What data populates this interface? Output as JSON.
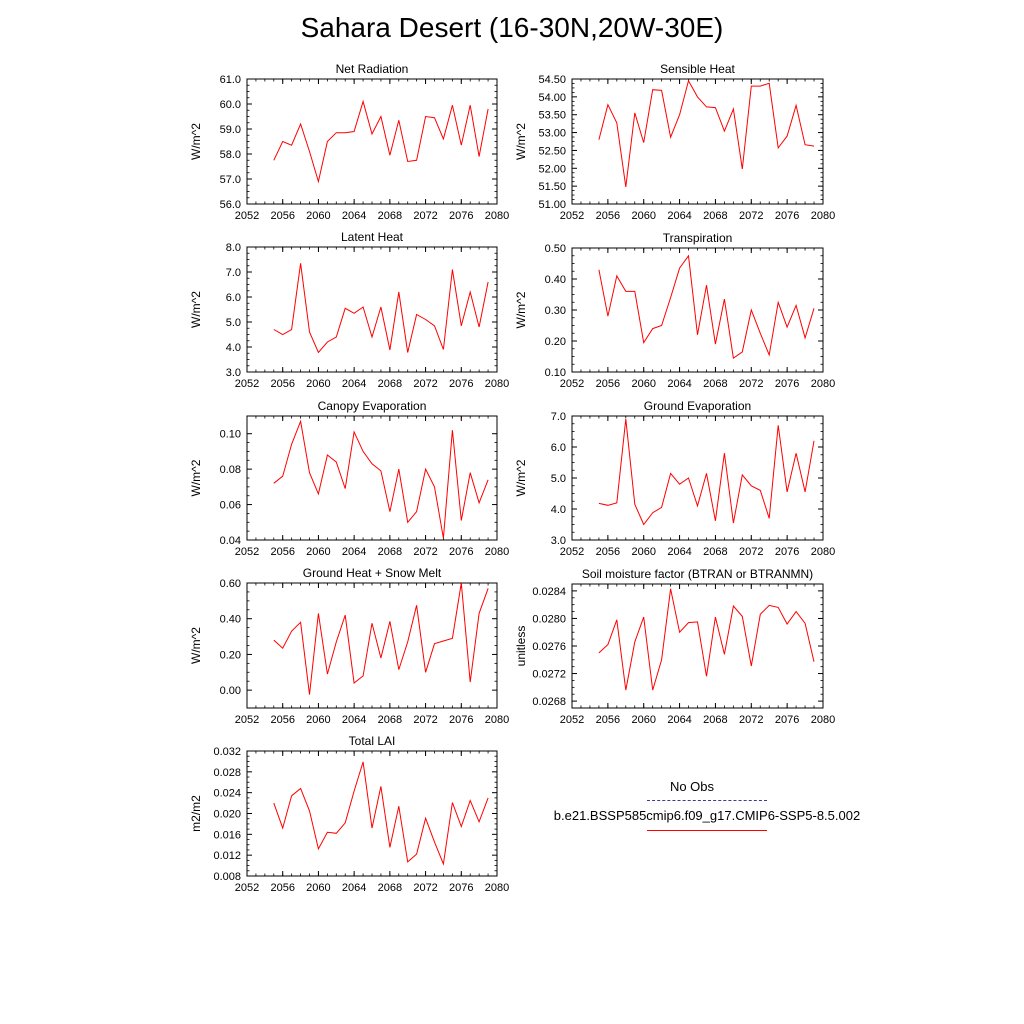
{
  "title": "Sahara Desert (16-30N,20W-30E)",
  "legend": {
    "obs_label": "No Obs",
    "model_label": "b.e21.BSSP585cmip6.f09_g17.CMIP6-SSP5-8.5.002",
    "obs_color": "#3a3a9a",
    "model_color": "#ff0000"
  },
  "chart_data": [
    {
      "type": "line",
      "title": "Net Radiation",
      "ylabel": "W/m^2",
      "xlim": [
        2052,
        2080
      ],
      "xticks": [
        "2052",
        "2056",
        "2060",
        "2064",
        "2068",
        "2072",
        "2076",
        "2080"
      ],
      "ylim": [
        56.0,
        61.0
      ],
      "yticks": [
        "56.0",
        "57.0",
        "58.0",
        "59.0",
        "60.0",
        "61.0"
      ],
      "grid": false,
      "series": [
        {
          "color": "#ff0000",
          "x": [
            2055,
            2056,
            2057,
            2058,
            2059,
            2060,
            2061,
            2062,
            2063,
            2064,
            2065,
            2066,
            2067,
            2068,
            2069,
            2070,
            2071,
            2072,
            2073,
            2074,
            2075,
            2076,
            2077,
            2078,
            2079
          ],
          "values": [
            57.75,
            58.5,
            58.35,
            59.2,
            58.1,
            56.9,
            58.5,
            58.85,
            58.85,
            58.9,
            60.1,
            58.8,
            59.5,
            57.95,
            59.35,
            57.7,
            57.75,
            59.5,
            59.45,
            58.6,
            59.95,
            58.35,
            59.95,
            57.9,
            59.8
          ]
        }
      ]
    },
    {
      "type": "line",
      "title": "Sensible Heat",
      "ylabel": "W/m^2",
      "xlim": [
        2052,
        2080
      ],
      "xticks": [
        "2052",
        "2056",
        "2060",
        "2064",
        "2068",
        "2072",
        "2076",
        "2080"
      ],
      "ylim": [
        51.0,
        54.5
      ],
      "yticks": [
        "51.00",
        "51.50",
        "52.00",
        "52.50",
        "53.00",
        "53.50",
        "54.00",
        "54.50"
      ],
      "grid": false,
      "series": [
        {
          "color": "#ff0000",
          "x": [
            2055,
            2056,
            2057,
            2058,
            2059,
            2060,
            2061,
            2062,
            2063,
            2064,
            2065,
            2066,
            2067,
            2068,
            2069,
            2070,
            2071,
            2072,
            2073,
            2074,
            2075,
            2076,
            2077,
            2078,
            2079
          ],
          "values": [
            52.8,
            53.78,
            53.27,
            51.48,
            53.55,
            52.72,
            54.2,
            54.18,
            52.87,
            53.5,
            54.45,
            54.0,
            53.72,
            53.7,
            53.04,
            53.66,
            51.98,
            54.3,
            54.3,
            54.38,
            52.57,
            52.9,
            53.76,
            52.66,
            52.62
          ]
        }
      ]
    },
    {
      "type": "line",
      "title": "Latent Heat",
      "ylabel": "W/m^2",
      "xlim": [
        2052,
        2080
      ],
      "xticks": [
        "2052",
        "2056",
        "2060",
        "2064",
        "2068",
        "2072",
        "2076",
        "2080"
      ],
      "ylim": [
        3.0,
        8.0
      ],
      "yticks": [
        "3.0",
        "4.0",
        "5.0",
        "6.0",
        "7.0",
        "8.0"
      ],
      "grid": false,
      "series": [
        {
          "color": "#ff0000",
          "x": [
            2055,
            2056,
            2057,
            2058,
            2059,
            2060,
            2061,
            2062,
            2063,
            2064,
            2065,
            2066,
            2067,
            2068,
            2069,
            2070,
            2071,
            2072,
            2073,
            2074,
            2075,
            2076,
            2077,
            2078,
            2079
          ],
          "values": [
            4.7,
            4.5,
            4.7,
            7.35,
            4.6,
            3.78,
            4.2,
            4.4,
            5.55,
            5.35,
            5.6,
            4.4,
            5.6,
            3.88,
            6.2,
            3.78,
            5.3,
            5.1,
            4.85,
            3.9,
            7.1,
            4.85,
            6.2,
            4.8,
            6.6
          ]
        }
      ]
    },
    {
      "type": "line",
      "title": "Transpiration",
      "ylabel": "W/m^2",
      "xlim": [
        2052,
        2080
      ],
      "xticks": [
        "2052",
        "2056",
        "2060",
        "2064",
        "2068",
        "2072",
        "2076",
        "2080"
      ],
      "ylim": [
        0.1,
        0.5
      ],
      "yticks": [
        "0.10",
        "0.20",
        "0.30",
        "0.40",
        "0.50"
      ],
      "grid": false,
      "series": [
        {
          "color": "#ff0000",
          "x": [
            2055,
            2056,
            2057,
            2058,
            2059,
            2060,
            2061,
            2062,
            2063,
            2064,
            2065,
            2066,
            2067,
            2068,
            2069,
            2070,
            2071,
            2072,
            2073,
            2074,
            2075,
            2076,
            2077,
            2078,
            2079
          ],
          "values": [
            0.43,
            0.28,
            0.41,
            0.36,
            0.36,
            0.195,
            0.24,
            0.25,
            0.34,
            0.435,
            0.475,
            0.22,
            0.38,
            0.19,
            0.335,
            0.145,
            0.165,
            0.3,
            0.225,
            0.155,
            0.325,
            0.245,
            0.315,
            0.21,
            0.305
          ]
        }
      ]
    },
    {
      "type": "line",
      "title": "Canopy Evaporation",
      "ylabel": "W/m^2",
      "xlim": [
        2052,
        2080
      ],
      "xticks": [
        "2052",
        "2056",
        "2060",
        "2064",
        "2068",
        "2072",
        "2076",
        "2080"
      ],
      "ylim": [
        0.04,
        0.11
      ],
      "yticks": [
        "0.04",
        "0.06",
        "0.08",
        "0.10"
      ],
      "grid": false,
      "series": [
        {
          "color": "#ff0000",
          "x": [
            2055,
            2056,
            2057,
            2058,
            2059,
            2060,
            2061,
            2062,
            2063,
            2064,
            2065,
            2066,
            2067,
            2068,
            2069,
            2070,
            2071,
            2072,
            2073,
            2074,
            2075,
            2076,
            2077,
            2078,
            2079
          ],
          "values": [
            0.072,
            0.076,
            0.094,
            0.107,
            0.078,
            0.066,
            0.088,
            0.084,
            0.069,
            0.101,
            0.09,
            0.083,
            0.079,
            0.056,
            0.08,
            0.05,
            0.056,
            0.08,
            0.07,
            0.041,
            0.102,
            0.051,
            0.078,
            0.061,
            0.074
          ]
        }
      ]
    },
    {
      "type": "line",
      "title": "Ground Evaporation",
      "ylabel": "W/m^2",
      "xlim": [
        2052,
        2080
      ],
      "xticks": [
        "2052",
        "2056",
        "2060",
        "2064",
        "2068",
        "2072",
        "2076",
        "2080"
      ],
      "ylim": [
        3.0,
        7.0
      ],
      "yticks": [
        "3.0",
        "4.0",
        "5.0",
        "6.0",
        "7.0"
      ],
      "grid": false,
      "series": [
        {
          "color": "#ff0000",
          "x": [
            2055,
            2056,
            2057,
            2058,
            2059,
            2060,
            2061,
            2062,
            2063,
            2064,
            2065,
            2066,
            2067,
            2068,
            2069,
            2070,
            2071,
            2072,
            2073,
            2074,
            2075,
            2076,
            2077,
            2078,
            2079
          ],
          "values": [
            4.18,
            4.12,
            4.2,
            6.9,
            4.15,
            3.5,
            3.88,
            4.05,
            5.15,
            4.8,
            5.0,
            4.1,
            5.15,
            3.62,
            5.8,
            3.55,
            5.1,
            4.75,
            4.6,
            3.7,
            6.7,
            4.55,
            5.8,
            4.55,
            6.2
          ]
        }
      ]
    },
    {
      "type": "line",
      "title": "Ground Heat + Snow Melt",
      "ylabel": "W/m^2",
      "xlim": [
        2052,
        2080
      ],
      "xticks": [
        "2052",
        "2056",
        "2060",
        "2064",
        "2068",
        "2072",
        "2076",
        "2080"
      ],
      "ylim": [
        -0.1,
        0.6
      ],
      "yticks": [
        "0.00",
        "0.20",
        "0.40",
        "0.60"
      ],
      "ytick_values": [
        0.0,
        0.2,
        0.4,
        0.6
      ],
      "grid": false,
      "series": [
        {
          "color": "#ff0000",
          "x": [
            2055,
            2056,
            2057,
            2058,
            2059,
            2060,
            2061,
            2062,
            2063,
            2064,
            2065,
            2066,
            2067,
            2068,
            2069,
            2070,
            2071,
            2072,
            2073,
            2074,
            2075,
            2076,
            2077,
            2078,
            2079
          ],
          "values": [
            0.28,
            0.235,
            0.33,
            0.38,
            -0.025,
            0.43,
            0.09,
            0.27,
            0.42,
            0.04,
            0.08,
            0.375,
            0.18,
            0.385,
            0.115,
            0.27,
            0.475,
            0.1,
            0.26,
            0.275,
            0.29,
            0.6,
            0.045,
            0.43,
            0.57
          ]
        }
      ]
    },
    {
      "type": "line",
      "title": "Soil moisture factor (BTRAN or BTRANMN)",
      "ylabel": "unitless",
      "xlim": [
        2052,
        2080
      ],
      "xticks": [
        "2052",
        "2056",
        "2060",
        "2064",
        "2068",
        "2072",
        "2076",
        "2080"
      ],
      "ylim": [
        0.0267,
        0.0285
      ],
      "yticks": [
        "0.0268",
        "0.0272",
        "0.0276",
        "0.0280",
        "0.0284"
      ],
      "ytick_values": [
        0.0268,
        0.0272,
        0.0276,
        0.028,
        0.0284
      ],
      "grid": false,
      "series": [
        {
          "color": "#ff0000",
          "x": [
            2055,
            2056,
            2057,
            2058,
            2059,
            2060,
            2061,
            2062,
            2063,
            2064,
            2065,
            2066,
            2067,
            2068,
            2069,
            2070,
            2071,
            2072,
            2073,
            2074,
            2075,
            2076,
            2077,
            2078,
            2079
          ],
          "values": [
            0.0275,
            0.02762,
            0.02798,
            0.02696,
            0.02766,
            0.02802,
            0.02696,
            0.0274,
            0.02843,
            0.0278,
            0.02794,
            0.02795,
            0.02716,
            0.02802,
            0.02748,
            0.02818,
            0.02803,
            0.02731,
            0.02806,
            0.02819,
            0.02816,
            0.02792,
            0.0281,
            0.02793,
            0.02737
          ]
        }
      ]
    },
    {
      "type": "line",
      "title": "Total LAI",
      "ylabel": "m2/m2",
      "xlim": [
        2052,
        2080
      ],
      "xticks": [
        "2052",
        "2056",
        "2060",
        "2064",
        "2068",
        "2072",
        "2076",
        "2080"
      ],
      "ylim": [
        0.008,
        0.032
      ],
      "yticks": [
        "0.008",
        "0.012",
        "0.016",
        "0.020",
        "0.024",
        "0.028",
        "0.032"
      ],
      "grid": false,
      "series": [
        {
          "color": "#ff0000",
          "x": [
            2055,
            2056,
            2057,
            2058,
            2059,
            2060,
            2061,
            2062,
            2063,
            2064,
            2065,
            2066,
            2067,
            2068,
            2069,
            2070,
            2071,
            2072,
            2073,
            2074,
            2075,
            2076,
            2077,
            2078,
            2079
          ],
          "values": [
            0.022,
            0.0172,
            0.0234,
            0.0248,
            0.0205,
            0.0132,
            0.0164,
            0.0162,
            0.0182,
            0.0243,
            0.0299,
            0.0172,
            0.0252,
            0.0135,
            0.0214,
            0.0107,
            0.0122,
            0.0191,
            0.0145,
            0.0103,
            0.0221,
            0.0175,
            0.0225,
            0.0184,
            0.023
          ]
        }
      ]
    }
  ]
}
